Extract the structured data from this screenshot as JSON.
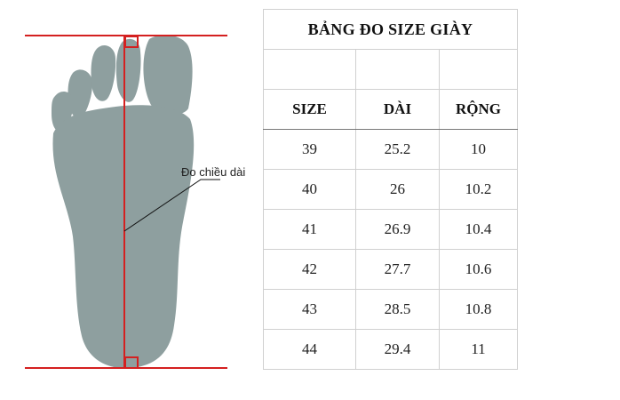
{
  "figure": {
    "measure_label": "Đo chiều dài",
    "foot_color": "#8e9f9f",
    "line_color": "#d42020"
  },
  "table": {
    "title": "BẢNG ĐO SIZE GIÀY",
    "headers": [
      "SIZE",
      "DÀI",
      "RỘNG"
    ],
    "rows": [
      [
        "39",
        "25.2",
        "10"
      ],
      [
        "40",
        "26",
        "10.2"
      ],
      [
        "41",
        "26.9",
        "10.4"
      ],
      [
        "42",
        "27.7",
        "10.6"
      ],
      [
        "43",
        "28.5",
        "10.8"
      ],
      [
        "44",
        "29.4",
        "11"
      ]
    ]
  }
}
